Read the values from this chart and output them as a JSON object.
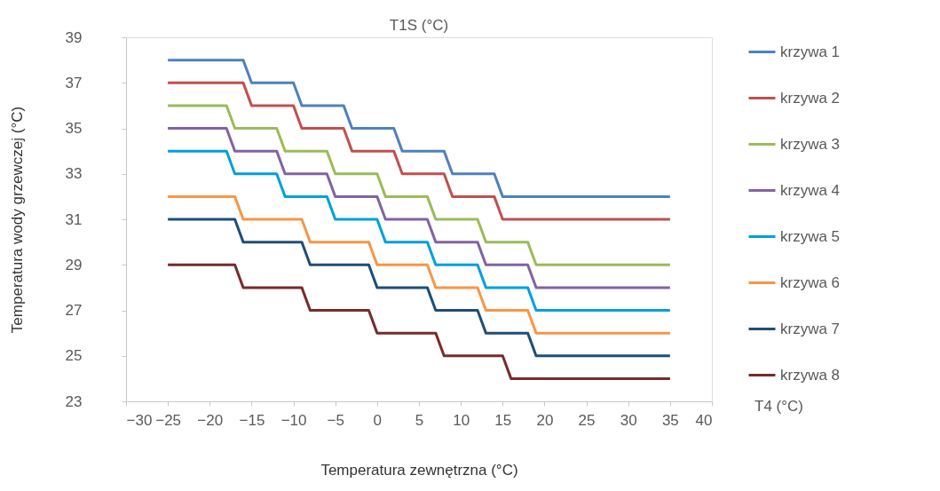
{
  "chart_data": {
    "type": "line",
    "title": "T1S (°C)",
    "xlabel": "Temperatura zewnętrzna (°C)",
    "ylabel": "Temperatura  wody grzewczej (°C)",
    "annotations": [
      "T4 (°C)"
    ],
    "xlim": [
      -30,
      40
    ],
    "xticks": [
      -30,
      -25,
      -20,
      -15,
      -10,
      -5,
      0,
      5,
      10,
      15,
      20,
      25,
      30,
      35,
      40
    ],
    "ylim": [
      23,
      39
    ],
    "yticks": [
      23,
      25,
      27,
      29,
      31,
      33,
      35,
      37,
      39
    ],
    "grid": false,
    "legend": "right",
    "series": [
      {
        "name": "krzywa 1",
        "color": "#4f81bd",
        "x": [
          -25,
          -16,
          -15,
          -10,
          -9,
          -4,
          -3,
          2,
          3,
          8,
          9,
          14,
          15,
          35
        ],
        "values": [
          38,
          38,
          37,
          37,
          36,
          36,
          35,
          35,
          34,
          34,
          33,
          33,
          32,
          32
        ]
      },
      {
        "name": "krzywa 2",
        "color": "#c0504d",
        "x": [
          -25,
          -16,
          -15,
          -10,
          -9,
          -4,
          -3,
          2,
          3,
          8,
          9,
          14,
          15,
          35
        ],
        "values": [
          37,
          37,
          36,
          36,
          35,
          35,
          34,
          34,
          33,
          33,
          32,
          32,
          31,
          31
        ]
      },
      {
        "name": "krzywa 3",
        "color": "#9bbb59",
        "x": [
          -25,
          -18,
          -17,
          -12,
          -11,
          -6,
          -5,
          0,
          1,
          6,
          7,
          12,
          13,
          18,
          19,
          35
        ],
        "values": [
          36,
          36,
          35,
          35,
          34,
          34,
          33,
          33,
          32,
          32,
          31,
          31,
          30,
          30,
          29,
          29
        ]
      },
      {
        "name": "krzywa 4",
        "color": "#8064a2",
        "x": [
          -25,
          -18,
          -17,
          -12,
          -11,
          -6,
          -5,
          0,
          1,
          6,
          7,
          12,
          13,
          18,
          19,
          35
        ],
        "values": [
          35,
          35,
          34,
          34,
          33,
          33,
          32,
          32,
          31,
          31,
          30,
          30,
          29,
          29,
          28,
          28
        ]
      },
      {
        "name": "krzywa 5",
        "color": "#00a0dc",
        "x": [
          -25,
          -18,
          -17,
          -12,
          -11,
          -6,
          -5,
          0,
          1,
          6,
          7,
          12,
          13,
          18,
          19,
          35
        ],
        "values": [
          34,
          34,
          33,
          33,
          32,
          32,
          31,
          31,
          30,
          30,
          29,
          29,
          28,
          28,
          27,
          27
        ]
      },
      {
        "name": "krzywa 6",
        "color": "#f79646",
        "x": [
          -25,
          -17,
          -16,
          -9,
          -8,
          -1,
          0,
          6,
          7,
          12,
          13,
          18,
          19,
          35
        ],
        "values": [
          32,
          32,
          31,
          31,
          30,
          30,
          29,
          29,
          28,
          28,
          27,
          27,
          26,
          26
        ]
      },
      {
        "name": "krzywa 7",
        "color": "#1f4e79",
        "x": [
          -25,
          -17,
          -16,
          -9,
          -8,
          -1,
          0,
          6,
          7,
          12,
          13,
          18,
          19,
          35
        ],
        "values": [
          31,
          31,
          30,
          30,
          29,
          29,
          28,
          28,
          27,
          27,
          26,
          26,
          25,
          25
        ]
      },
      {
        "name": "krzywa 8",
        "color": "#772c2a",
        "x": [
          -25,
          -17,
          -16,
          -9,
          -8,
          -1,
          0,
          7,
          8,
          15,
          16,
          35
        ],
        "values": [
          29,
          29,
          28,
          28,
          27,
          27,
          26,
          26,
          25,
          25,
          24,
          24
        ]
      }
    ]
  }
}
